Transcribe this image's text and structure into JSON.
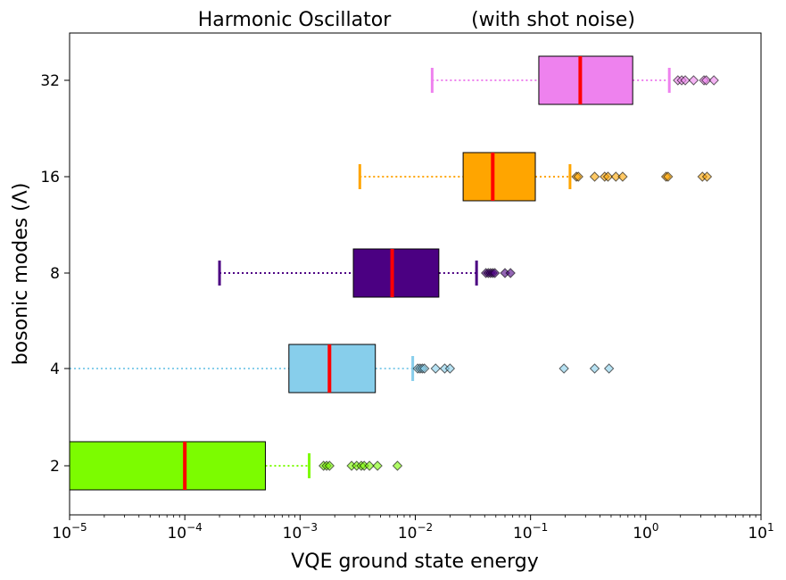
{
  "chart_data": {
    "type": "box",
    "orientation": "horizontal",
    "title_left": "Harmonic Oscillator",
    "title_right": "(with shot noise)",
    "xlabel": "VQE ground state energy",
    "ylabel": "bosonic modes (Λ)",
    "xscale": "log",
    "xlim": [
      1e-05,
      10
    ],
    "x_ticks": [
      {
        "value": 1e-05,
        "base": "10",
        "exp": "−5"
      },
      {
        "value": 0.0001,
        "base": "10",
        "exp": "−4"
      },
      {
        "value": 0.001,
        "base": "10",
        "exp": "−3"
      },
      {
        "value": 0.01,
        "base": "10",
        "exp": "−2"
      },
      {
        "value": 0.1,
        "base": "10",
        "exp": "−1"
      },
      {
        "value": 1,
        "base": "10",
        "exp": "0"
      },
      {
        "value": 10,
        "base": "10",
        "exp": "1"
      }
    ],
    "categories": [
      "2",
      "4",
      "8",
      "16",
      "32"
    ],
    "median_color": "#ff0000",
    "series": [
      {
        "category": "2",
        "color": "#7cfc00",
        "whisker_low": 1e-05,
        "q1": 1e-05,
        "median": 0.0001,
        "q3": 0.0005,
        "whisker_high": 0.0012,
        "outliers": [
          0.0016,
          0.0017,
          0.0018,
          0.0028,
          0.0031,
          0.0034,
          0.0036,
          0.004,
          0.0047,
          0.007
        ]
      },
      {
        "category": "4",
        "color": "#87ceeb",
        "whisker_low": 1e-05,
        "q1": 0.0008,
        "median": 0.0018,
        "q3": 0.0045,
        "whisker_high": 0.0095,
        "outliers": [
          0.0105,
          0.011,
          0.0115,
          0.012,
          0.015,
          0.018,
          0.02,
          0.195,
          0.36,
          0.48
        ]
      },
      {
        "category": "8",
        "color": "#4b0082",
        "whisker_low": 0.0002,
        "q1": 0.0029,
        "median": 0.0063,
        "q3": 0.016,
        "whisker_high": 0.034,
        "outliers": [
          0.041,
          0.043,
          0.045,
          0.047,
          0.049,
          0.06,
          0.067
        ]
      },
      {
        "category": "16",
        "color": "#ffa500",
        "whisker_low": 0.0033,
        "q1": 0.026,
        "median": 0.047,
        "q3": 0.11,
        "whisker_high": 0.22,
        "outliers": [
          0.25,
          0.26,
          0.36,
          0.44,
          0.47,
          0.55,
          0.63,
          1.5,
          1.56,
          3.1,
          3.4
        ]
      },
      {
        "category": "32",
        "color": "#ee82ee",
        "whisker_low": 0.014,
        "q1": 0.118,
        "median": 0.27,
        "q3": 0.77,
        "whisker_high": 1.6,
        "outliers": [
          1.9,
          2.05,
          2.2,
          2.6,
          3.2,
          3.35,
          3.9
        ]
      }
    ]
  }
}
